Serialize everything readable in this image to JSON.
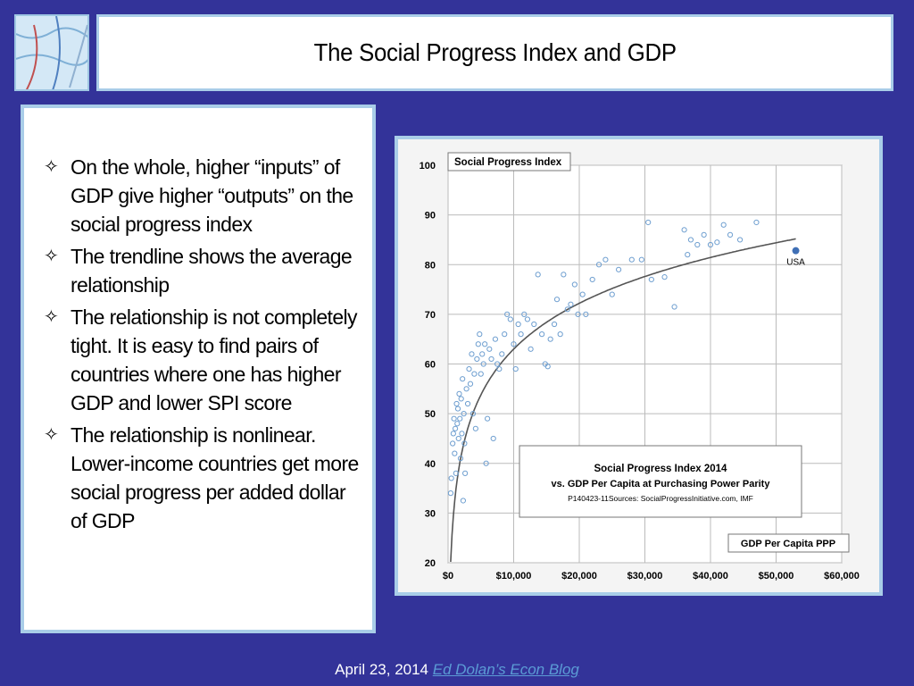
{
  "slide": {
    "title": "The Social Progress Index and GDP",
    "bullets": [
      "On the whole, higher  “inputs” of GDP give higher “outputs” on the social progress index",
      "The trendline shows the average relationship",
      "The relationship is not completely tight. It is easy to find pairs of countries where one has higher GDP and lower SPI score",
      "The relationship is nonlinear. Lower-income countries get more social progress per added dollar of GDP"
    ],
    "bullet_symbol": "✧",
    "footer": {
      "date": "April 23, 2014",
      "link_text": "Ed Dolan’s Econ Blog"
    }
  },
  "chart_data": {
    "type": "scatter",
    "ylabel": "Social Progress Index",
    "xlabel": "GDP Per Capita PPP",
    "caption_title": "Social Progress Index 2014",
    "caption_subtitle": "vs. GDP Per Capita at Purchasing Power Parity",
    "caption_source": "P140423-11Sources: SocialProgressInitiative.com, IMF",
    "xlim": [
      0,
      60000
    ],
    "ylim": [
      20,
      100
    ],
    "x_ticks": [
      0,
      10000,
      20000,
      30000,
      40000,
      50000,
      60000
    ],
    "x_tick_labels": [
      "$0",
      "$10,000",
      "$20,000",
      "$30,000",
      "$40,000",
      "$50,000",
      "$60,000"
    ],
    "y_ticks": [
      20,
      30,
      40,
      50,
      60,
      70,
      80,
      90,
      100
    ],
    "y_tick_labels": [
      "20",
      "30",
      "40",
      "50",
      "60",
      "70",
      "80",
      "90",
      "100"
    ],
    "grid": true,
    "highlight": {
      "label": "USA",
      "x": 53000,
      "y": 82.8
    },
    "trendline": {
      "type": "logarithmic",
      "a": -59.5,
      "b": 13.3
    },
    "points": [
      [
        400,
        34
      ],
      [
        500,
        37
      ],
      [
        700,
        44
      ],
      [
        800,
        46
      ],
      [
        900,
        49
      ],
      [
        1000,
        42
      ],
      [
        1100,
        47
      ],
      [
        1200,
        38
      ],
      [
        1300,
        52
      ],
      [
        1400,
        48
      ],
      [
        1500,
        51
      ],
      [
        1600,
        45
      ],
      [
        1700,
        54
      ],
      [
        1800,
        49
      ],
      [
        1900,
        41
      ],
      [
        2000,
        53
      ],
      [
        2100,
        46
      ],
      [
        2200,
        57
      ],
      [
        2300,
        32.5
      ],
      [
        2400,
        50
      ],
      [
        2500,
        44
      ],
      [
        2600,
        38
      ],
      [
        2800,
        55
      ],
      [
        3000,
        52
      ],
      [
        3200,
        59
      ],
      [
        3400,
        56
      ],
      [
        3600,
        62
      ],
      [
        3800,
        50
      ],
      [
        4000,
        58
      ],
      [
        4200,
        47
      ],
      [
        4400,
        61
      ],
      [
        4600,
        64
      ],
      [
        4800,
        66
      ],
      [
        5000,
        58
      ],
      [
        5200,
        62
      ],
      [
        5400,
        60
      ],
      [
        5600,
        64
      ],
      [
        5800,
        40
      ],
      [
        6000,
        49
      ],
      [
        6300,
        63
      ],
      [
        6600,
        61
      ],
      [
        6900,
        45
      ],
      [
        7200,
        65
      ],
      [
        7500,
        60
      ],
      [
        7800,
        59
      ],
      [
        8200,
        62
      ],
      [
        8600,
        66
      ],
      [
        9000,
        70
      ],
      [
        9500,
        69
      ],
      [
        10000,
        64
      ],
      [
        10300,
        59
      ],
      [
        10700,
        68
      ],
      [
        11100,
        66
      ],
      [
        11600,
        70
      ],
      [
        12100,
        69
      ],
      [
        12600,
        63
      ],
      [
        13100,
        68
      ],
      [
        13700,
        78
      ],
      [
        14300,
        66
      ],
      [
        14800,
        60
      ],
      [
        15200,
        59.5
      ],
      [
        15600,
        65
      ],
      [
        16200,
        68
      ],
      [
        16600,
        73
      ],
      [
        17100,
        66
      ],
      [
        17600,
        78
      ],
      [
        18200,
        71
      ],
      [
        18700,
        72
      ],
      [
        19300,
        76
      ],
      [
        19800,
        70
      ],
      [
        20500,
        74
      ],
      [
        21000,
        70
      ],
      [
        22000,
        77
      ],
      [
        23000,
        80
      ],
      [
        24000,
        81
      ],
      [
        25000,
        74
      ],
      [
        26000,
        79
      ],
      [
        28000,
        81
      ],
      [
        29500,
        81
      ],
      [
        30500,
        88.5
      ],
      [
        31000,
        77
      ],
      [
        33000,
        77.5
      ],
      [
        34500,
        71.5
      ],
      [
        36000,
        87
      ],
      [
        36500,
        82
      ],
      [
        37000,
        85
      ],
      [
        38000,
        84
      ],
      [
        39000,
        86
      ],
      [
        40000,
        84
      ],
      [
        41000,
        84.5
      ],
      [
        42000,
        88
      ],
      [
        43000,
        86
      ],
      [
        44500,
        85
      ],
      [
        47000,
        88.5
      ]
    ]
  }
}
